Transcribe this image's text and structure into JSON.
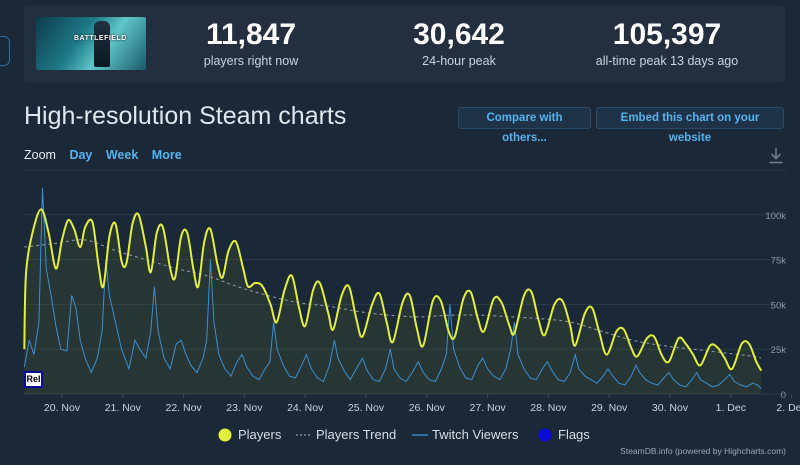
{
  "stats": {
    "current": {
      "value": "11,847",
      "label": "players right now"
    },
    "peak24": {
      "value": "30,642",
      "label": "24-hour peak"
    },
    "alltime": {
      "value": "105,397",
      "label": "all-time peak 13 days ago"
    }
  },
  "game": {
    "thumb_text": "BATTLEFIELD"
  },
  "page_title": "High-resolution Steam charts",
  "buttons": {
    "compare": "Compare with others...",
    "embed": "Embed this chart on your website"
  },
  "zoom": {
    "label": "Zoom",
    "options": [
      "Day",
      "Week",
      "More"
    ]
  },
  "legend": {
    "players": "Players",
    "trend": "Players Trend",
    "twitch": "Twitch Viewers",
    "flags": "Flags"
  },
  "rel_badge": "Rel",
  "credit": "SteamDB.info (powered by Highcharts.com)",
  "colors": {
    "players": "#e2f03b",
    "trend": "#8a96a3",
    "twitch": "#3a8fd0",
    "flags": "#0a0adc"
  },
  "chart_data": {
    "type": "line",
    "x_unit": "days",
    "x_categories": [
      "20. Nov",
      "21. Nov",
      "22. Nov",
      "23. Nov",
      "24. Nov",
      "25. Nov",
      "26. Nov",
      "27. Nov",
      "28. Nov",
      "29. Nov",
      "30. Nov",
      "1. Dec",
      "2. Dec"
    ],
    "y_ticks": [
      "0",
      "25k",
      "50k",
      "75k",
      "100k"
    ],
    "ylim": [
      0,
      125000
    ],
    "series": [
      {
        "name": "Players",
        "values": [
          [
            0.0,
            25000
          ],
          [
            0.03,
            68000
          ],
          [
            0.15,
            92000
          ],
          [
            0.28,
            103000
          ],
          [
            0.4,
            90000
          ],
          [
            0.52,
            70000
          ],
          [
            0.62,
            86000
          ],
          [
            0.72,
            97000
          ],
          [
            0.82,
            92000
          ],
          [
            0.92,
            82000
          ],
          [
            1.0,
            93000
          ],
          [
            1.12,
            96000
          ],
          [
            1.22,
            72000
          ],
          [
            1.3,
            60000
          ],
          [
            1.4,
            88000
          ],
          [
            1.5,
            95000
          ],
          [
            1.6,
            74000
          ],
          [
            1.68,
            73000
          ],
          [
            1.78,
            95000
          ],
          [
            1.88,
            100000
          ],
          [
            2.0,
            82000
          ],
          [
            2.08,
            68000
          ],
          [
            2.18,
            90000
          ],
          [
            2.28,
            93000
          ],
          [
            2.4,
            70000
          ],
          [
            2.48,
            65000
          ],
          [
            2.58,
            88000
          ],
          [
            2.68,
            90000
          ],
          [
            2.78,
            70000
          ],
          [
            2.86,
            60000
          ],
          [
            2.96,
            85000
          ],
          [
            3.06,
            92000
          ],
          [
            3.18,
            72000
          ],
          [
            3.26,
            65000
          ],
          [
            3.36,
            80000
          ],
          [
            3.48,
            85000
          ],
          [
            3.6,
            70000
          ],
          [
            3.68,
            60000
          ],
          [
            3.8,
            62000
          ],
          [
            3.92,
            60000
          ],
          [
            4.05,
            50000
          ],
          [
            4.15,
            40000
          ],
          [
            4.28,
            58000
          ],
          [
            4.4,
            66000
          ],
          [
            4.52,
            48000
          ],
          [
            4.62,
            38000
          ],
          [
            4.75,
            58000
          ],
          [
            4.86,
            62000
          ],
          [
            5.0,
            45000
          ],
          [
            5.08,
            36000
          ],
          [
            5.22,
            55000
          ],
          [
            5.34,
            60000
          ],
          [
            5.46,
            42000
          ],
          [
            5.56,
            32000
          ],
          [
            5.72,
            50000
          ],
          [
            5.84,
            56000
          ],
          [
            5.96,
            40000
          ],
          [
            6.06,
            29000
          ],
          [
            6.22,
            51000
          ],
          [
            6.34,
            55000
          ],
          [
            6.46,
            36000
          ],
          [
            6.56,
            27000
          ],
          [
            6.72,
            52000
          ],
          [
            6.85,
            52000
          ],
          [
            6.98,
            35000
          ],
          [
            7.08,
            32000
          ],
          [
            7.22,
            53000
          ],
          [
            7.34,
            57000
          ],
          [
            7.46,
            42000
          ],
          [
            7.56,
            35000
          ],
          [
            7.72,
            53000
          ],
          [
            7.85,
            51000
          ],
          [
            7.98,
            38000
          ],
          [
            8.06,
            34000
          ],
          [
            8.22,
            55000
          ],
          [
            8.34,
            57000
          ],
          [
            8.46,
            41000
          ],
          [
            8.56,
            33000
          ],
          [
            8.72,
            50000
          ],
          [
            8.85,
            52000
          ],
          [
            8.98,
            38000
          ],
          [
            9.06,
            27000
          ],
          [
            9.22,
            45000
          ],
          [
            9.34,
            48000
          ],
          [
            9.46,
            34000
          ],
          [
            9.58,
            22000
          ],
          [
            9.74,
            35000
          ],
          [
            9.86,
            36000
          ],
          [
            9.98,
            26000
          ],
          [
            10.08,
            21000
          ],
          [
            10.24,
            31000
          ],
          [
            10.36,
            32000
          ],
          [
            10.48,
            22000
          ],
          [
            10.6,
            18000
          ],
          [
            10.76,
            31000
          ],
          [
            10.88,
            28000
          ],
          [
            11.0,
            22000
          ],
          [
            11.12,
            16000
          ],
          [
            11.28,
            27000
          ],
          [
            11.4,
            26000
          ],
          [
            11.52,
            20000
          ],
          [
            11.64,
            14000
          ],
          [
            11.8,
            28000
          ],
          [
            11.92,
            28000
          ],
          [
            12.04,
            18000
          ],
          [
            12.12,
            13000
          ]
        ]
      },
      {
        "name": "Players Trend",
        "values": [
          [
            0.0,
            82000
          ],
          [
            0.5,
            84000
          ],
          [
            1.0,
            86000
          ],
          [
            1.5,
            80000
          ],
          [
            2.0,
            75000
          ],
          [
            2.5,
            70000
          ],
          [
            3.0,
            66000
          ],
          [
            3.5,
            60000
          ],
          [
            4.0,
            55000
          ],
          [
            4.5,
            51000
          ],
          [
            5.0,
            49000
          ],
          [
            5.5,
            46000
          ],
          [
            6.0,
            44000
          ],
          [
            6.5,
            43000
          ],
          [
            7.0,
            44000
          ],
          [
            7.5,
            44000
          ],
          [
            8.0,
            43000
          ],
          [
            8.5,
            42000
          ],
          [
            9.0,
            40000
          ],
          [
            9.5,
            35000
          ],
          [
            10.0,
            30000
          ],
          [
            10.5,
            27000
          ],
          [
            11.0,
            25000
          ],
          [
            11.5,
            23000
          ],
          [
            12.0,
            21000
          ],
          [
            12.12,
            20000
          ]
        ]
      },
      {
        "name": "Twitch Viewers",
        "values": [
          [
            0.0,
            15000
          ],
          [
            0.08,
            30000
          ],
          [
            0.16,
            22000
          ],
          [
            0.24,
            40000
          ],
          [
            0.3,
            115000
          ],
          [
            0.36,
            70000
          ],
          [
            0.44,
            55000
          ],
          [
            0.52,
            38000
          ],
          [
            0.6,
            25000
          ],
          [
            0.7,
            24000
          ],
          [
            0.78,
            55000
          ],
          [
            0.85,
            48000
          ],
          [
            0.92,
            30000
          ],
          [
            1.0,
            20000
          ],
          [
            1.1,
            12000
          ],
          [
            1.2,
            20000
          ],
          [
            1.28,
            35000
          ],
          [
            1.34,
            75000
          ],
          [
            1.4,
            55000
          ],
          [
            1.5,
            40000
          ],
          [
            1.6,
            25000
          ],
          [
            1.72,
            14000
          ],
          [
            1.82,
            30000
          ],
          [
            1.9,
            25000
          ],
          [
            2.0,
            20000
          ],
          [
            2.08,
            35000
          ],
          [
            2.14,
            60000
          ],
          [
            2.2,
            35000
          ],
          [
            2.3,
            20000
          ],
          [
            2.4,
            14000
          ],
          [
            2.5,
            28000
          ],
          [
            2.58,
            30000
          ],
          [
            2.66,
            22000
          ],
          [
            2.74,
            16000
          ],
          [
            2.84,
            12000
          ],
          [
            2.94,
            20000
          ],
          [
            3.0,
            30000
          ],
          [
            3.06,
            75000
          ],
          [
            3.12,
            40000
          ],
          [
            3.2,
            22000
          ],
          [
            3.3,
            14000
          ],
          [
            3.4,
            10000
          ],
          [
            3.5,
            18000
          ],
          [
            3.58,
            22000
          ],
          [
            3.66,
            15000
          ],
          [
            3.76,
            10000
          ],
          [
            3.86,
            8000
          ],
          [
            3.96,
            14000
          ],
          [
            4.04,
            18000
          ],
          [
            4.1,
            40000
          ],
          [
            4.16,
            25000
          ],
          [
            4.26,
            16000
          ],
          [
            4.36,
            10000
          ],
          [
            4.46,
            9000
          ],
          [
            4.56,
            16000
          ],
          [
            4.64,
            22000
          ],
          [
            4.72,
            14000
          ],
          [
            4.82,
            9000
          ],
          [
            4.92,
            7000
          ],
          [
            5.02,
            16000
          ],
          [
            5.1,
            30000
          ],
          [
            5.16,
            20000
          ],
          [
            5.26,
            13000
          ],
          [
            5.36,
            8000
          ],
          [
            5.46,
            14000
          ],
          [
            5.56,
            20000
          ],
          [
            5.64,
            13000
          ],
          [
            5.74,
            8000
          ],
          [
            5.84,
            7000
          ],
          [
            5.94,
            14000
          ],
          [
            6.02,
            25000
          ],
          [
            6.08,
            14000
          ],
          [
            6.18,
            9000
          ],
          [
            6.28,
            7000
          ],
          [
            6.38,
            12000
          ],
          [
            6.48,
            18000
          ],
          [
            6.56,
            12000
          ],
          [
            6.66,
            8000
          ],
          [
            6.76,
            7000
          ],
          [
            6.86,
            14000
          ],
          [
            6.94,
            22000
          ],
          [
            7.0,
            50000
          ],
          [
            7.06,
            25000
          ],
          [
            7.16,
            15000
          ],
          [
            7.26,
            9000
          ],
          [
            7.36,
            8000
          ],
          [
            7.46,
            16000
          ],
          [
            7.54,
            20000
          ],
          [
            7.62,
            14000
          ],
          [
            7.72,
            10000
          ],
          [
            7.82,
            8000
          ],
          [
            7.92,
            14000
          ],
          [
            8.0,
            25000
          ],
          [
            8.06,
            40000
          ],
          [
            8.12,
            22000
          ],
          [
            8.22,
            14000
          ],
          [
            8.32,
            9000
          ],
          [
            8.42,
            8000
          ],
          [
            8.52,
            14000
          ],
          [
            8.6,
            18000
          ],
          [
            8.68,
            13000
          ],
          [
            8.78,
            8000
          ],
          [
            8.88,
            7000
          ],
          [
            8.98,
            12000
          ],
          [
            9.06,
            22000
          ],
          [
            9.12,
            14000
          ],
          [
            9.22,
            10000
          ],
          [
            9.32,
            8000
          ],
          [
            9.42,
            6000
          ],
          [
            9.52,
            10000
          ],
          [
            9.6,
            14000
          ],
          [
            9.68,
            10000
          ],
          [
            9.78,
            6000
          ],
          [
            9.88,
            5000
          ],
          [
            9.98,
            10000
          ],
          [
            10.06,
            16000
          ],
          [
            10.12,
            12000
          ],
          [
            10.22,
            8000
          ],
          [
            10.32,
            6000
          ],
          [
            10.42,
            5000
          ],
          [
            10.52,
            9000
          ],
          [
            10.6,
            12000
          ],
          [
            10.68,
            8000
          ],
          [
            10.78,
            5000
          ],
          [
            10.88,
            4000
          ],
          [
            10.98,
            8000
          ],
          [
            11.06,
            12000
          ],
          [
            11.12,
            8000
          ],
          [
            11.22,
            6000
          ],
          [
            11.32,
            4000
          ],
          [
            11.42,
            5000
          ],
          [
            11.52,
            8000
          ],
          [
            11.6,
            11000
          ],
          [
            11.68,
            7000
          ],
          [
            11.78,
            5000
          ],
          [
            11.88,
            4000
          ],
          [
            11.98,
            6000
          ],
          [
            12.06,
            5000
          ],
          [
            12.12,
            3000
          ]
        ]
      }
    ]
  }
}
